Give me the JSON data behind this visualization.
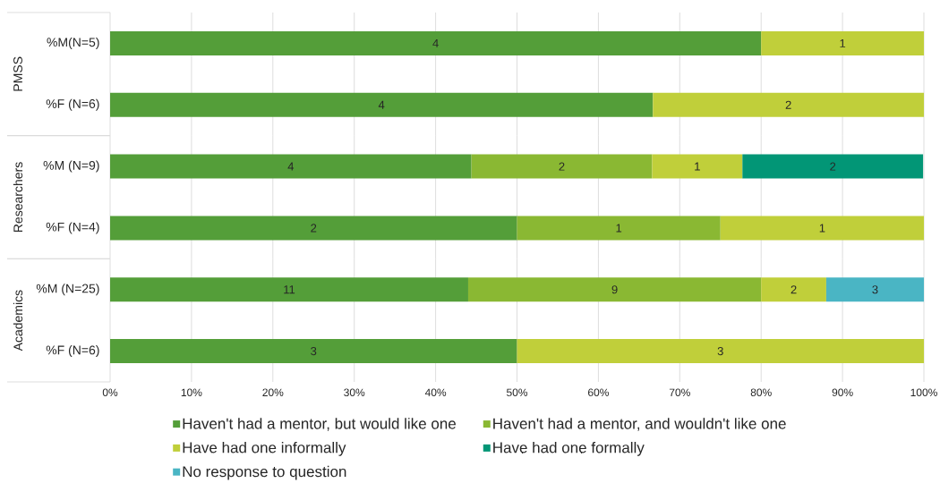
{
  "chart_data": [
    {
      "type": "bar",
      "orientation": "horizontal",
      "stacked": true,
      "title": "PMSS",
      "categories": [
        "%M(N=5)",
        "%F (N=6)"
      ],
      "series": [
        {
          "color": "#549e39",
          "values": [
            80,
            66.7
          ]
        },
        {
          "color": "#c0cf3a",
          "values": [
            20,
            33.3
          ]
        }
      ],
      "xlim": [
        0,
        100
      ],
      "xticks": [
        {
          "value": 0,
          "label": null
        },
        {
          "value": 10,
          "label": null
        },
        {
          "value": 20,
          "label": null
        },
        {
          "value": 30,
          "label": null
        },
        {
          "value": 40,
          "label": null
        },
        {
          "value": 50,
          "label": null
        },
        {
          "value": 60,
          "label": null
        },
        {
          "value": 70,
          "label": null
        },
        {
          "value": 80,
          "label": null
        },
        {
          "value": 90,
          "label": null
        },
        {
          "value": 100,
          "label": null
        }
      ],
      "tick_labels": "y",
      "grid": "x",
      "annotations": [
        "4",
        "1",
        "4",
        "2"
      ]
    },
    {
      "type": "bar",
      "orientation": "horizontal",
      "stacked": true,
      "title": "Researchers",
      "categories": [
        "%M (N=9)",
        "%F (N=4)"
      ],
      "series": [
        {
          "color": "#549e39",
          "values": [
            44.4,
            50
          ]
        },
        {
          "color": "#8ab833",
          "values": [
            22.2,
            25
          ]
        },
        {
          "color": "#c0cf3a",
          "values": [
            11.1,
            25
          ]
        },
        {
          "color": "#029676",
          "values": [
            22.2,
            null
          ]
        }
      ],
      "xlim": [
        0,
        100
      ],
      "xticks": [
        {
          "value": 0,
          "label": null
        },
        {
          "value": 10,
          "label": null
        },
        {
          "value": 20,
          "label": null
        },
        {
          "value": 30,
          "label": null
        },
        {
          "value": 40,
          "label": null
        },
        {
          "value": 50,
          "label": null
        },
        {
          "value": 60,
          "label": null
        },
        {
          "value": 70,
          "label": null
        },
        {
          "value": 80,
          "label": null
        },
        {
          "value": 90,
          "label": null
        },
        {
          "value": 100,
          "label": null
        }
      ],
      "tick_labels": "y",
      "grid": "x",
      "annotations": [
        "4",
        "2",
        "1",
        "2",
        "2",
        "1",
        "1"
      ]
    },
    {
      "type": "bar",
      "orientation": "horizontal",
      "stacked": true,
      "title": "Academics",
      "categories": [
        "%M (N=25)",
        "%F (N=6)"
      ],
      "series": [
        {
          "name": "Haven't had a mentor, but would like one",
          "color": "#549e39",
          "values": [
            44,
            50
          ]
        },
        {
          "name": "Haven't had a mentor, and wouldn't like one",
          "color": "#8ab833",
          "values": [
            36,
            null
          ]
        },
        {
          "name": "Have had one informally",
          "color": "#c0cf3a",
          "values": [
            8,
            50
          ]
        },
        {
          "name": "Have had one formally",
          "color": "#029676",
          "values": [
            null,
            null
          ]
        },
        {
          "name": "No response to question",
          "color": "#4ab5c4",
          "values": [
            12,
            null
          ]
        }
      ],
      "xlim": [
        0,
        100
      ],
      "xticks": [
        {
          "value": 0,
          "label": "0%"
        },
        {
          "value": 10,
          "label": "10%"
        },
        {
          "value": 20,
          "label": "20%"
        },
        {
          "value": 30,
          "label": "30%"
        },
        {
          "value": 40,
          "label": "40%"
        },
        {
          "value": 50,
          "label": "50%"
        },
        {
          "value": 60,
          "label": "60%"
        },
        {
          "value": 70,
          "label": "70%"
        },
        {
          "value": 80,
          "label": "80%"
        },
        {
          "value": 90,
          "label": "90%"
        },
        {
          "value": 100,
          "label": "100%"
        }
      ],
      "grid": "x",
      "legend": "bottom",
      "annotations": [
        "11",
        "9",
        "2",
        "3",
        "3",
        "3"
      ]
    }
  ]
}
